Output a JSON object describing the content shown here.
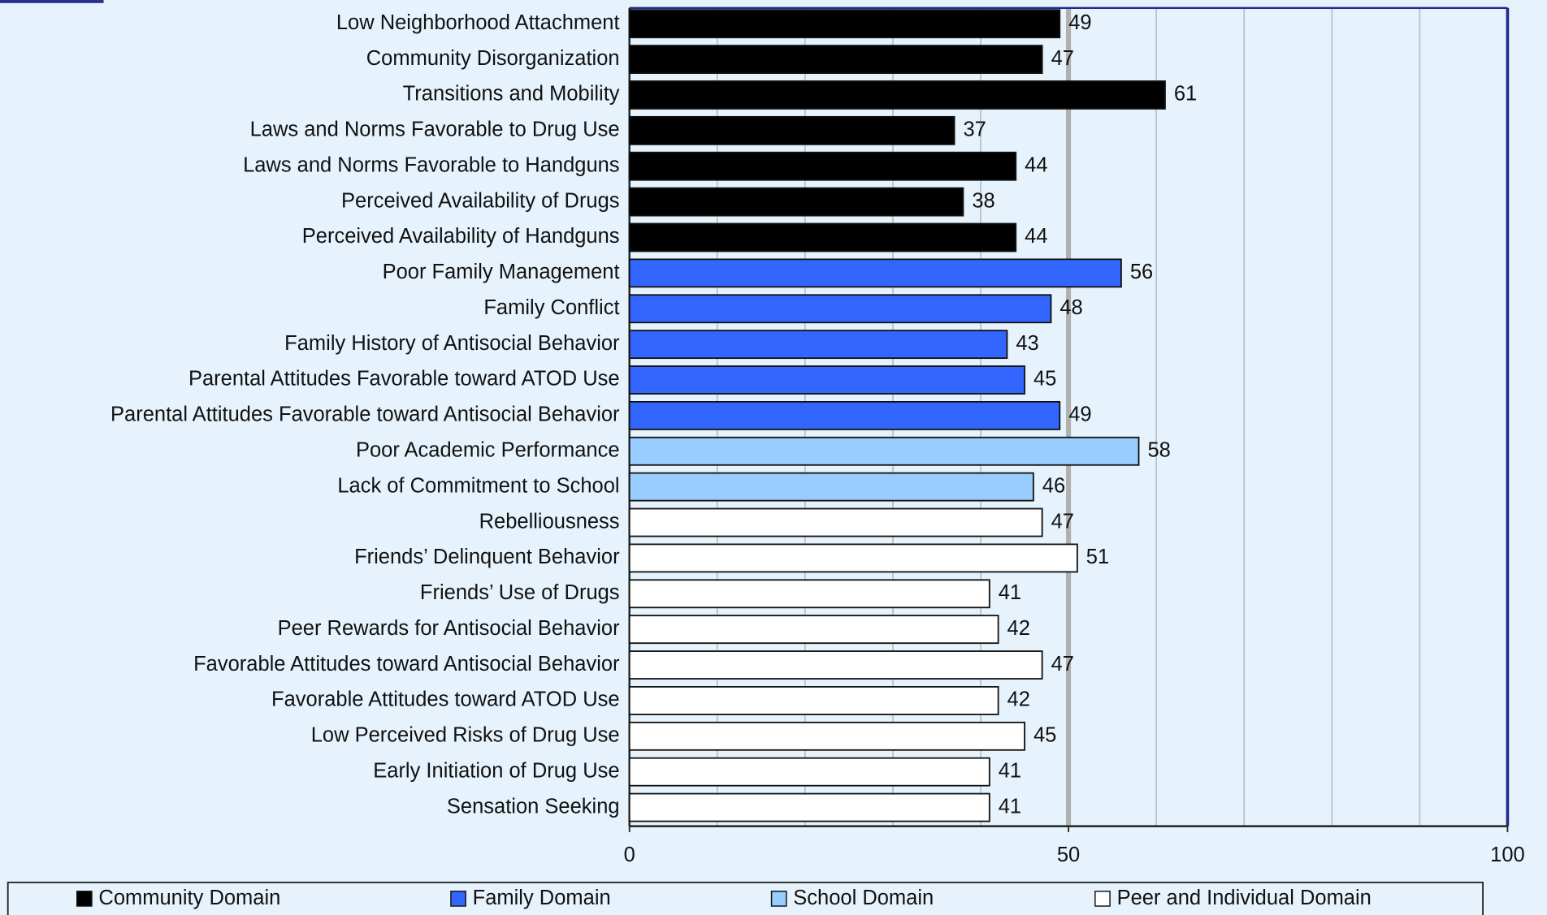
{
  "chart_data": {
    "type": "hbar",
    "categories": [
      "Low Neighborhood Attachment",
      "Community Disorganization",
      "Transitions and Mobility",
      "Laws and Norms Favorable to Drug Use",
      "Laws and Norms Favorable to Handguns",
      "Perceived Availability of Drugs",
      "Perceived Availability of Handguns",
      "Poor Family Management",
      "Family Conflict",
      "Family History of Antisocial Behavior",
      "Parental Attitudes Favorable toward ATOD Use",
      "Parental Attitudes Favorable toward Antisocial Behavior",
      "Poor Academic Performance",
      "Lack of Commitment to School",
      "Rebelliousness",
      "Friends’ Delinquent Behavior",
      "Friends’ Use of Drugs",
      "Peer Rewards for Antisocial Behavior",
      "Favorable Attitudes toward Antisocial Behavior",
      "Favorable Attitudes toward ATOD Use",
      "Low Perceived Risks of Drug Use",
      "Early Initiation of Drug Use",
      "Sensation Seeking"
    ],
    "series": [
      {
        "name": "Community Domain",
        "color": "#000000",
        "values": [
          49,
          47,
          61,
          37,
          44,
          38,
          44,
          null,
          null,
          null,
          null,
          null,
          null,
          null,
          null,
          null,
          null,
          null,
          null,
          null,
          null,
          null,
          null
        ]
      },
      {
        "name": "Family Domain",
        "color": "#3366ff",
        "values": [
          null,
          null,
          null,
          null,
          null,
          null,
          null,
          56,
          48,
          43,
          45,
          49,
          null,
          null,
          null,
          null,
          null,
          null,
          null,
          null,
          null,
          null,
          null
        ]
      },
      {
        "name": "School Domain",
        "color": "#99ccff",
        "values": [
          null,
          null,
          null,
          null,
          null,
          null,
          null,
          null,
          null,
          null,
          null,
          null,
          58,
          46,
          null,
          null,
          null,
          null,
          null,
          null,
          null,
          null,
          null
        ]
      },
      {
        "name": "Peer and Individual Domain",
        "color": "#ffffff",
        "values": [
          null,
          null,
          null,
          null,
          null,
          null,
          null,
          null,
          null,
          null,
          null,
          null,
          null,
          null,
          47,
          51,
          41,
          42,
          47,
          42,
          45,
          41,
          41
        ]
      }
    ],
    "xlim": [
      0,
      100
    ],
    "xticks": [
      0,
      50,
      100
    ],
    "xminor": [
      10,
      20,
      30,
      40,
      60,
      70,
      80,
      90
    ],
    "grid": true,
    "legend": "bottom"
  }
}
